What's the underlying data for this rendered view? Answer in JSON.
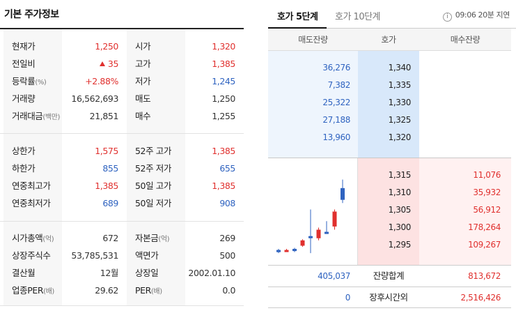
{
  "left": {
    "title": "기본 주가정보",
    "sections": [
      {
        "rows": [
          {
            "l1": "현재가",
            "u1": "",
            "v1": "1,250",
            "c1": "red",
            "l2": "시가",
            "u2": "",
            "v2": "1,320",
            "c2": "red"
          },
          {
            "l1": "전일비",
            "u1": "",
            "v1": "35",
            "c1": "red",
            "up1": true,
            "l2": "고가",
            "u2": "",
            "v2": "1,385",
            "c2": "red"
          },
          {
            "l1": "등락률",
            "u1": "(%)",
            "v1": "+2.88%",
            "c1": "red",
            "l2": "저가",
            "u2": "",
            "v2": "1,245",
            "c2": "blue"
          },
          {
            "l1": "거래량",
            "u1": "",
            "v1": "16,562,693",
            "c1": "dark",
            "l2": "매도",
            "u2": "",
            "v2": "1,250",
            "c2": "dark"
          },
          {
            "l1": "거래대금",
            "u1": "(백만)",
            "v1": "21,851",
            "c1": "dark",
            "l2": "매수",
            "u2": "",
            "v2": "1,255",
            "c2": "dark"
          }
        ]
      },
      {
        "rows": [
          {
            "l1": "상한가",
            "u1": "",
            "v1": "1,575",
            "c1": "red",
            "l2": "52주 고가",
            "u2": "",
            "v2": "1,385",
            "c2": "red"
          },
          {
            "l1": "하한가",
            "u1": "",
            "v1": "855",
            "c1": "blue",
            "l2": "52주 저가",
            "u2": "",
            "v2": "655",
            "c2": "blue"
          },
          {
            "l1": "연중최고가",
            "u1": "",
            "v1": "1,385",
            "c1": "red",
            "l2": "50일 고가",
            "u2": "",
            "v2": "1,385",
            "c2": "red"
          },
          {
            "l1": "연중최저가",
            "u1": "",
            "v1": "689",
            "c1": "blue",
            "l2": "50일 저가",
            "u2": "",
            "v2": "908",
            "c2": "blue"
          }
        ]
      },
      {
        "rows": [
          {
            "l1": "시가총액",
            "u1": "(억)",
            "v1": "672",
            "c1": "dark",
            "l2": "자본금",
            "u2": "(억)",
            "v2": "269",
            "c2": "dark"
          },
          {
            "l1": "상장주식수",
            "u1": "",
            "v1": "53,785,531",
            "c1": "dark",
            "l2": "액면가",
            "u2": "",
            "v2": "500",
            "c2": "dark"
          },
          {
            "l1": "결산월",
            "u1": "",
            "v1": "12월",
            "c1": "dark",
            "l2": "상장일",
            "u2": "",
            "v2": "2002.01.10",
            "c2": "dark"
          },
          {
            "l1": "업종PER",
            "u1": "(배)",
            "v1": "29.62",
            "c1": "dark",
            "l2": "PER",
            "u2": "(배)",
            "v2": "0.0",
            "c2": "dark"
          }
        ]
      }
    ]
  },
  "tabs": {
    "active": "호가 5단계",
    "inactive": "호가 10단계",
    "info_icon": "i",
    "delay_text": "09:06 20분 지연"
  },
  "orderbook": {
    "headers": {
      "ask_volume": "매도잔량",
      "price": "호가",
      "bid_volume": "매수잔량"
    },
    "asks": [
      {
        "volume": "36,276",
        "price": "1,340"
      },
      {
        "volume": "7,382",
        "price": "1,335"
      },
      {
        "volume": "25,322",
        "price": "1,330"
      },
      {
        "volume": "27,188",
        "price": "1,325"
      },
      {
        "volume": "13,960",
        "price": "1,320"
      }
    ],
    "bids": [
      {
        "price": "1,315",
        "volume": "11,076"
      },
      {
        "price": "1,310",
        "volume": "35,932"
      },
      {
        "price": "1,305",
        "volume": "56,912"
      },
      {
        "price": "1,300",
        "volume": "178,264"
      },
      {
        "price": "1,295",
        "volume": "109,267"
      }
    ],
    "totals": {
      "ask": "405,037",
      "label": "잔량합계",
      "bid": "813,672"
    },
    "after_hours": {
      "ask": "0",
      "label": "장후시간외",
      "bid": "2,516,426"
    }
  },
  "mini_chart": {
    "colors": {
      "up": "#e0302e",
      "down": "#2f63c0"
    },
    "candles": [
      {
        "o": 0.14,
        "c": 0.12,
        "h": 0.15,
        "l": 0.11
      },
      {
        "o": 0.14,
        "c": 0.14,
        "h": 0.15,
        "l": 0.13
      },
      {
        "o": 0.15,
        "c": 0.13,
        "h": 0.16,
        "l": 0.12
      },
      {
        "o": 0.18,
        "c": 0.23,
        "h": 0.24,
        "l": 0.17
      },
      {
        "o": 0.27,
        "c": 0.26,
        "h": 0.52,
        "l": 0.11
      },
      {
        "o": 0.25,
        "c": 0.33,
        "h": 0.35,
        "l": 0.23
      },
      {
        "o": 0.31,
        "c": 0.3,
        "h": 0.41,
        "l": 0.29
      },
      {
        "o": 0.36,
        "c": 0.5,
        "h": 0.52,
        "l": 0.33
      },
      {
        "o": 0.72,
        "c": 0.61,
        "h": 0.8,
        "l": 0.58
      }
    ]
  }
}
